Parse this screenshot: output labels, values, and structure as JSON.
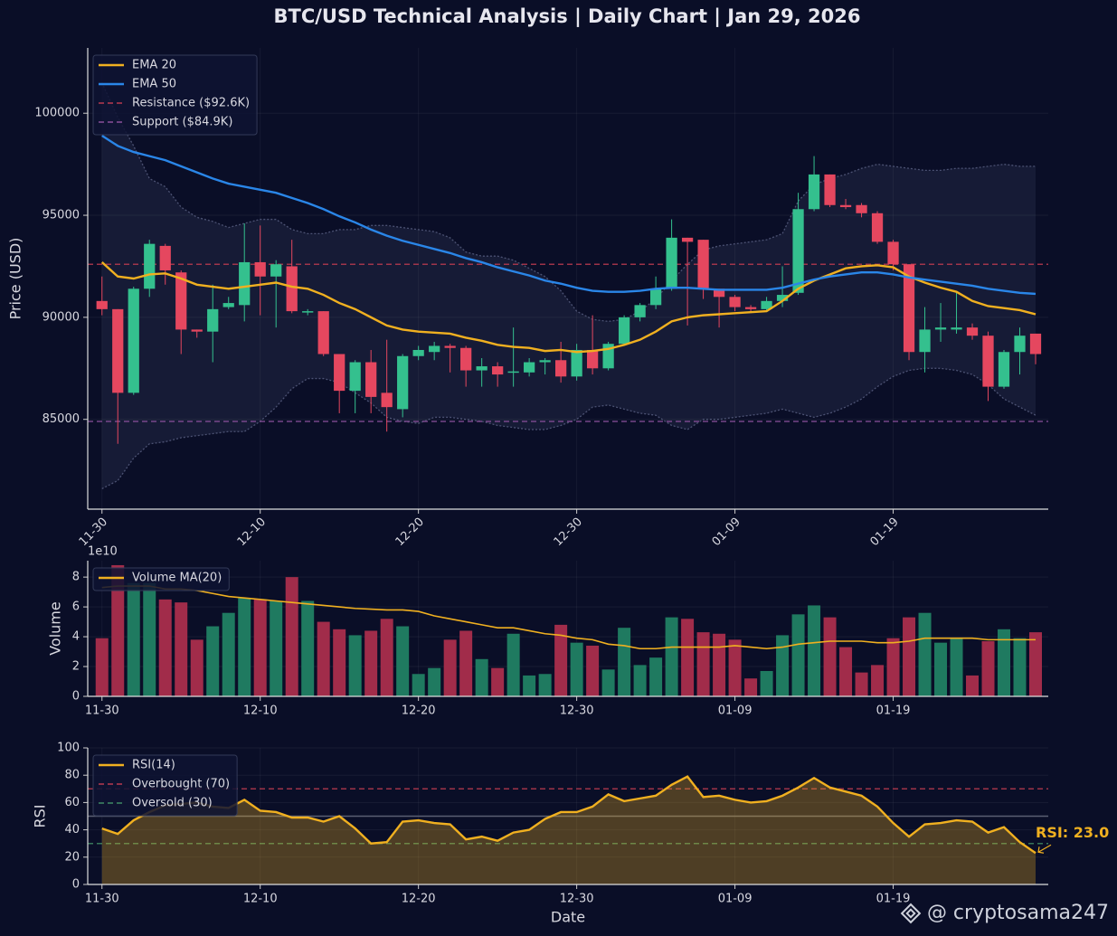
{
  "title": "BTC/USD Technical Analysis | Daily Chart | Jan 29, 2026",
  "watermark": "@ cryptosama247",
  "chart_data": [
    {
      "type": "candlestick",
      "ylabel": "Price (USD)",
      "xtick_rotation": 45,
      "grid": true,
      "legend": "upper left",
      "categories": [
        "11-30",
        null,
        null,
        null,
        null,
        null,
        null,
        null,
        null,
        null,
        "12-10",
        null,
        null,
        null,
        null,
        null,
        null,
        null,
        null,
        null,
        "12-20",
        null,
        null,
        null,
        null,
        null,
        null,
        null,
        null,
        null,
        "12-30",
        null,
        null,
        null,
        null,
        null,
        null,
        null,
        null,
        null,
        "01-09",
        null,
        null,
        null,
        null,
        null,
        null,
        null,
        null,
        null,
        "01-19",
        null,
        null,
        null,
        null,
        null,
        null,
        null,
        null,
        null
      ],
      "open": [
        90800,
        90400,
        86300,
        91400,
        93500,
        92200,
        89400,
        89300,
        90500,
        90600,
        92700,
        92000,
        92500,
        90250,
        90300,
        88200,
        86400,
        87800,
        86300,
        85500,
        88100,
        88300,
        88600,
        88500,
        87400,
        87600,
        87300,
        87300,
        87800,
        87900,
        87100,
        88400,
        87500,
        88700,
        90000,
        90600,
        91400,
        93900,
        93800,
        91400,
        91000,
        90500,
        90400,
        90800,
        91200,
        95300,
        97000,
        95500,
        95500,
        95100,
        93700,
        92600,
        88300,
        89400,
        89400,
        89500,
        89100,
        86600,
        88300,
        89200
      ],
      "high": [
        92000,
        90400,
        91500,
        93800,
        93600,
        92300,
        89400,
        91600,
        91000,
        94600,
        94500,
        92800,
        93800,
        90400,
        90300,
        88200,
        87900,
        88400,
        88900,
        88200,
        88600,
        88800,
        88700,
        88600,
        88000,
        87800,
        89500,
        88000,
        88000,
        88800,
        88700,
        90100,
        88800,
        90100,
        90700,
        92000,
        94800,
        93900,
        93800,
        91400,
        91100,
        90600,
        91000,
        92500,
        96100,
        97900,
        97000,
        95800,
        95600,
        95200,
        93800,
        92600,
        90500,
        90700,
        91200,
        89700,
        89300,
        88400,
        89500,
        89200
      ],
      "low": [
        90100,
        83800,
        86200,
        91000,
        91600,
        88200,
        89000,
        87800,
        90400,
        89800,
        90100,
        89500,
        90200,
        90100,
        88100,
        85300,
        85300,
        85300,
        84400,
        85100,
        87900,
        87900,
        87300,
        86600,
        86600,
        86600,
        86600,
        87100,
        87200,
        86800,
        86900,
        87200,
        87400,
        88600,
        89800,
        90400,
        91300,
        89600,
        90900,
        89500,
        90300,
        90300,
        90300,
        90500,
        91100,
        95200,
        95400,
        95300,
        94900,
        93600,
        92300,
        87900,
        87300,
        88800,
        89200,
        88900,
        85900,
        86500,
        87200,
        87700
      ],
      "close": [
        90400,
        86300,
        91400,
        93600,
        92300,
        89400,
        89300,
        90400,
        90700,
        92700,
        92000,
        92600,
        90300,
        90300,
        88200,
        86400,
        87800,
        86100,
        85600,
        88100,
        88400,
        88600,
        88500,
        87400,
        87600,
        87200,
        87350,
        87800,
        87900,
        87100,
        88400,
        87500,
        88700,
        90000,
        90600,
        91400,
        93900,
        93700,
        91400,
        91000,
        90500,
        90400,
        90800,
        91100,
        95300,
        97000,
        95500,
        95400,
        95100,
        93700,
        92600,
        88300,
        89400,
        89500,
        89500,
        89100,
        86600,
        88300,
        89100,
        88200
      ],
      "up_color": "#34c08e",
      "down_color": "#e5475f",
      "series": [
        {
          "name": "EMA 20",
          "color": "#f0b020",
          "values": [
            92700,
            92000,
            91900,
            92100,
            92150,
            91900,
            91600,
            91500,
            91400,
            91500,
            91600,
            91700,
            91500,
            91400,
            91100,
            90700,
            90400,
            90000,
            89600,
            89400,
            89300,
            89250,
            89200,
            89000,
            88850,
            88650,
            88550,
            88500,
            88350,
            88400,
            88300,
            88350,
            88450,
            88650,
            88900,
            89300,
            89800,
            90000,
            90100,
            90150,
            90200,
            90250,
            90300,
            90800,
            91400,
            91800,
            92100,
            92400,
            92500,
            92550,
            92450,
            92000,
            91700,
            91450,
            91250,
            90800,
            90550,
            90450,
            90350,
            90150
          ]
        },
        {
          "name": "EMA 50",
          "color": "#2a86e8",
          "values": [
            98900,
            98400,
            98100,
            97900,
            97700,
            97400,
            97100,
            96800,
            96550,
            96400,
            96250,
            96100,
            95850,
            95600,
            95300,
            94950,
            94650,
            94300,
            94000,
            93750,
            93550,
            93350,
            93150,
            92900,
            92700,
            92450,
            92250,
            92050,
            91800,
            91650,
            91450,
            91300,
            91250,
            91250,
            91300,
            91400,
            91450,
            91450,
            91400,
            91350,
            91350,
            91350,
            91350,
            91450,
            91650,
            91850,
            92000,
            92100,
            92200,
            92200,
            92100,
            91950,
            91850,
            91750,
            91650,
            91550,
            91400,
            91300,
            91200,
            91150
          ]
        }
      ],
      "bands": {
        "color": "#8890b8",
        "upper": [
          101500,
          99800,
          98400,
          96800,
          96400,
          95400,
          94900,
          94700,
          94400,
          94600,
          94800,
          94800,
          94300,
          94100,
          94100,
          94300,
          94300,
          94500,
          94500,
          94400,
          94300,
          94200,
          93900,
          93200,
          93000,
          93000,
          92800,
          92400,
          92000,
          91300,
          90300,
          89900,
          89800,
          89900,
          90300,
          90900,
          91800,
          92600,
          93300,
          93500,
          93600,
          93700,
          93800,
          94100,
          95700,
          96500,
          96800,
          97000,
          97300,
          97500,
          97400,
          97300,
          97200,
          97200,
          97300,
          97300,
          97400,
          97500,
          97400,
          97400
        ],
        "lower": [
          81600,
          82000,
          83100,
          83800,
          83900,
          84100,
          84200,
          84300,
          84400,
          84400,
          84900,
          85600,
          86500,
          87000,
          87000,
          86800,
          86300,
          85800,
          85100,
          84900,
          84800,
          85100,
          85100,
          85000,
          84900,
          84700,
          84600,
          84500,
          84500,
          84700,
          85000,
          85600,
          85700,
          85500,
          85300,
          85200,
          84700,
          84500,
          85000,
          85000,
          85100,
          85200,
          85300,
          85500,
          85300,
          85100,
          85300,
          85600,
          86000,
          86600,
          87100,
          87400,
          87500,
          87500,
          87400,
          87200,
          86700,
          86000,
          85600,
          85200
        ]
      },
      "hlines": [
        {
          "name": "Resistance ($92.6K)",
          "value": 92600,
          "color": "#b8394f"
        },
        {
          "name": "Support ($84.9K)",
          "value": 84900,
          "color": "#8a4f9a"
        }
      ],
      "ylim": [
        80600,
        103200
      ],
      "yticks": [
        85000,
        90000,
        95000,
        100000
      ]
    },
    {
      "type": "bar",
      "ylabel": "Volume",
      "scale_label": "1e10",
      "grid": true,
      "legend": "upper left",
      "categories": [
        "11-30",
        null,
        null,
        null,
        null,
        null,
        null,
        null,
        null,
        null,
        "12-10",
        null,
        null,
        null,
        null,
        null,
        null,
        null,
        null,
        null,
        "12-20",
        null,
        null,
        null,
        null,
        null,
        null,
        null,
        null,
        null,
        "12-30",
        null,
        null,
        null,
        null,
        null,
        null,
        null,
        null,
        null,
        "01-09",
        null,
        null,
        null,
        null,
        null,
        null,
        null,
        null,
        null,
        "01-19",
        null,
        null,
        null,
        null,
        null,
        null,
        null,
        null,
        null
      ],
      "values": [
        3.9,
        8.8,
        7.6,
        7.6,
        6.5,
        6.3,
        3.8,
        4.7,
        5.6,
        6.6,
        6.5,
        6.4,
        8.0,
        6.4,
        5.0,
        4.5,
        4.1,
        4.4,
        5.2,
        4.7,
        1.5,
        1.9,
        3.8,
        4.4,
        2.5,
        1.9,
        4.2,
        1.4,
        1.5,
        4.8,
        3.6,
        3.4,
        1.8,
        4.6,
        2.1,
        2.6,
        5.3,
        5.2,
        4.3,
        4.2,
        3.8,
        1.2,
        1.7,
        4.1,
        5.5,
        6.1,
        5.3,
        3.3,
        1.6,
        2.1,
        3.9,
        5.3,
        5.6,
        3.6,
        3.9,
        1.4,
        3.7,
        4.5,
        3.9,
        4.3
      ],
      "up_color": "#1f7a60",
      "down_color": "#a12c4a",
      "series": [
        {
          "name": "Volume MA(20)",
          "color": "#f0b020",
          "values": [
            7.3,
            7.4,
            7.4,
            7.4,
            7.2,
            7.2,
            7.1,
            6.9,
            6.7,
            6.6,
            6.5,
            6.4,
            6.3,
            6.2,
            6.1,
            6.0,
            5.9,
            5.85,
            5.8,
            5.8,
            5.7,
            5.4,
            5.2,
            5.0,
            4.8,
            4.6,
            4.6,
            4.4,
            4.2,
            4.1,
            3.9,
            3.8,
            3.5,
            3.4,
            3.2,
            3.2,
            3.3,
            3.3,
            3.3,
            3.3,
            3.4,
            3.3,
            3.2,
            3.3,
            3.5,
            3.6,
            3.7,
            3.7,
            3.7,
            3.6,
            3.6,
            3.7,
            3.9,
            3.9,
            3.9,
            3.9,
            3.8,
            3.8,
            3.8,
            3.8
          ]
        }
      ],
      "ylim": [
        0,
        9.1
      ],
      "yticks": [
        0,
        2,
        4,
        6,
        8
      ]
    },
    {
      "type": "area",
      "ylabel": "RSI",
      "xlabel": "Date",
      "grid": true,
      "legend": "upper left",
      "categories": [
        "11-30",
        null,
        null,
        null,
        null,
        null,
        null,
        null,
        null,
        null,
        "12-10",
        null,
        null,
        null,
        null,
        null,
        null,
        null,
        null,
        null,
        "12-20",
        null,
        null,
        null,
        null,
        null,
        null,
        null,
        null,
        null,
        "12-30",
        null,
        null,
        null,
        null,
        null,
        null,
        null,
        null,
        null,
        "01-09",
        null,
        null,
        null,
        null,
        null,
        null,
        null,
        null,
        null,
        "01-19",
        null,
        null,
        null,
        null,
        null,
        null,
        null,
        null,
        null
      ],
      "series": [
        {
          "name": "RSI(14)",
          "color": "#f0b020",
          "values": [
            41,
            37,
            47,
            53,
            58,
            59,
            60,
            57,
            56,
            62,
            54,
            53,
            49,
            49,
            46,
            50,
            41,
            30,
            31,
            46,
            47,
            45,
            44,
            33,
            35,
            32,
            38,
            40,
            48,
            53,
            53,
            57,
            66,
            61,
            63,
            65,
            73,
            79,
            64,
            65,
            62,
            60,
            61,
            65,
            71,
            78,
            71,
            68,
            65,
            57,
            45,
            35,
            44,
            45,
            47,
            46,
            38,
            42,
            31,
            23
          ]
        }
      ],
      "hlines": [
        {
          "name": "Overbought (70)",
          "value": 70,
          "color": "#b8394f"
        },
        {
          "name": "Oversold (30)",
          "value": 30,
          "color": "#3f8a64"
        }
      ],
      "midline": 50,
      "annotation": "RSI: 23.0",
      "ylim": [
        0,
        100
      ],
      "yticks": [
        0,
        20,
        40,
        60,
        80,
        100
      ]
    }
  ]
}
